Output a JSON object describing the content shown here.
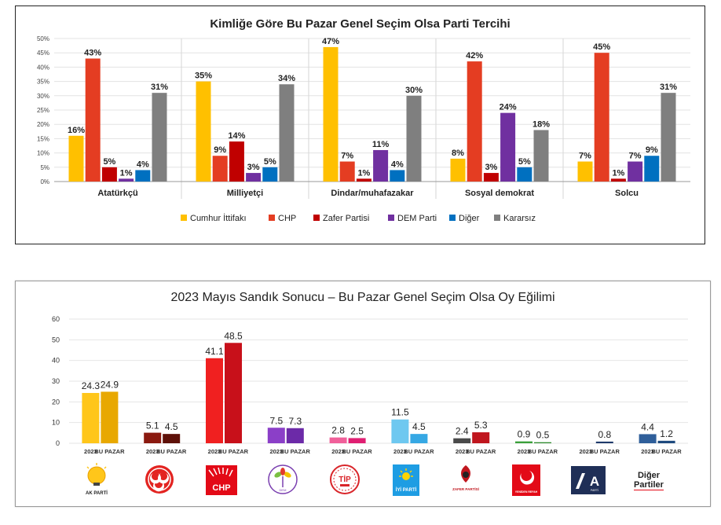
{
  "chart_data": [
    {
      "type": "bar",
      "title": "Kimliğe Göre Bu Pazar Genel Seçim Olsa Parti Tercihi",
      "categories": [
        "Atatürkçü",
        "Milliyetçi",
        "Dindar/muhafazakar",
        "Sosyal demokrat",
        "Solcu"
      ],
      "ylim": [
        0,
        50
      ],
      "yticks": [
        "0%",
        "5%",
        "10%",
        "15%",
        "20%",
        "25%",
        "30%",
        "35%",
        "40%",
        "45%",
        "50%"
      ],
      "grid": true,
      "legend_position": "bottom",
      "series": [
        {
          "name": "Cumhur İttifakı",
          "color": "#FFC000",
          "values": [
            16,
            35,
            47,
            8,
            7
          ]
        },
        {
          "name": "CHP",
          "color": "#E43D22",
          "values": [
            43,
            9,
            7,
            42,
            45
          ]
        },
        {
          "name": "Zafer Partisi",
          "color": "#C00000",
          "values": [
            5,
            14,
            1,
            3,
            1
          ]
        },
        {
          "name": "DEM Parti",
          "color": "#7030A0",
          "values": [
            1,
            3,
            11,
            24,
            7
          ]
        },
        {
          "name": "Diğer",
          "color": "#0070C0",
          "values": [
            4,
            5,
            4,
            5,
            9
          ]
        },
        {
          "name": "Kararsız",
          "color": "#7F7F7F",
          "values": [
            31,
            34,
            30,
            18,
            31
          ]
        }
      ]
    },
    {
      "type": "bar",
      "title": "2023 Mayıs Sandık Sonucu – Bu Pazar Genel Seçim Olsa Oy Eğilimi",
      "ylim": [
        0,
        60
      ],
      "yticks": [
        "0",
        "10",
        "20",
        "30",
        "40",
        "50",
        "60"
      ],
      "grid": true,
      "bar_labels": [
        "2023",
        "BU PAZAR"
      ],
      "groups": [
        {
          "party": "AK PARTİ",
          "values": [
            24.3,
            24.9
          ],
          "labels": [
            "24.3",
            "24.9"
          ],
          "colors": [
            "#FFC61A",
            "#E8A800"
          ]
        },
        {
          "party": "MHP",
          "values": [
            5.1,
            4.5
          ],
          "labels": [
            "5.1",
            "4.5"
          ],
          "colors": [
            "#8B1A10",
            "#5E1109"
          ]
        },
        {
          "party": "CHP",
          "values": [
            41.1,
            48.5
          ],
          "labels": [
            "41.1",
            "48.5"
          ],
          "colors": [
            "#F02020",
            "#C8101A"
          ]
        },
        {
          "party": "DEM PARTİ",
          "values": [
            7.5,
            7.3
          ],
          "labels": [
            "7.5",
            "7.3"
          ],
          "colors": [
            "#8B3FC8",
            "#6C2AA8"
          ]
        },
        {
          "party": "TİP",
          "values": [
            2.8,
            2.5
          ],
          "labels": [
            "2.8",
            "2.5"
          ],
          "colors": [
            "#F0609A",
            "#E01E72"
          ]
        },
        {
          "party": "İYİ PARTİ",
          "values": [
            11.5,
            4.5
          ],
          "labels": [
            "11.5",
            "4.5"
          ],
          "colors": [
            "#6EC8F0",
            "#36A8E4"
          ]
        },
        {
          "party": "ZAFER PARTİSİ",
          "values": [
            2.4,
            5.3
          ],
          "labels": [
            "2.4",
            "5.3"
          ],
          "colors": [
            "#4A4A4A",
            "#C0161E"
          ]
        },
        {
          "party": "YENİDEN REFAH",
          "values": [
            0.9,
            0.5
          ],
          "labels": [
            "0.9",
            "0.5"
          ],
          "colors": [
            "#3AA03A",
            "#2E8B2E"
          ]
        },
        {
          "party": "A PARTİ",
          "values": [
            null,
            0.8
          ],
          "labels": [
            "",
            "0.8"
          ],
          "colors": [
            "#1F3A6B",
            "#1F3A6B"
          ]
        },
        {
          "party": "Diğer Partiler",
          "values": [
            4.4,
            1.2
          ],
          "labels": [
            "4.4",
            "1.2"
          ],
          "colors": [
            "#2F5F9A",
            "#1E4A7E"
          ]
        }
      ]
    }
  ],
  "logos": {
    "akp": "AK PARTİ",
    "chp": "CHP",
    "tip": "TİP",
    "iyi": "İYİ PARTİ",
    "zafer": "ZAFER PARTİSİ",
    "refah": "YENİDEN REFAH",
    "aparti_letter": "A",
    "aparti_small": "PARTİ",
    "diger_line1": "Diğer",
    "diger_line2": "Partiler"
  }
}
